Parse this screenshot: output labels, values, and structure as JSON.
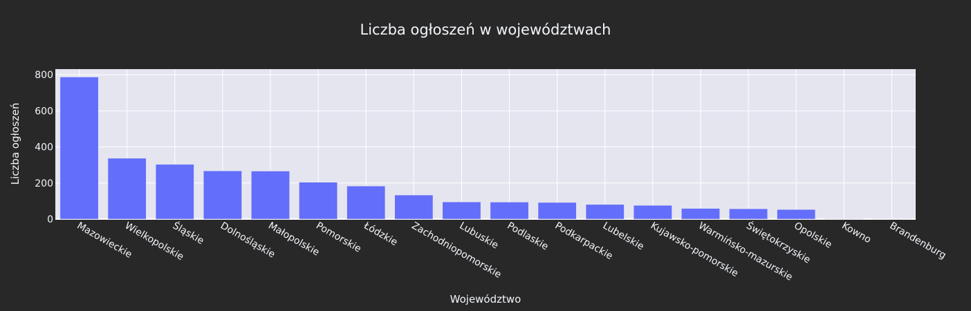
{
  "chart_data": {
    "type": "bar",
    "title": "Liczba ogłoszeń w województwach",
    "xlabel": "Województwo",
    "ylabel": "Liczba ogłoszeń",
    "categories": [
      "Mazowieckie",
      "Wielkopolskie",
      "Śląskie",
      "Dolnośląskie",
      "Małopolskie",
      "Pomorskie",
      "Łódzkie",
      "Zachodniopomorskie",
      "Lubuskie",
      "Podlaskie",
      "Podkarpackie",
      "Lubelskie",
      "Kujawsko-pomorskie",
      "Warmińsko-mazurskie",
      "Świętokrzyskie",
      "Opolskie",
      "Kowno",
      "Brandenburg"
    ],
    "values": [
      787,
      337,
      303,
      267,
      266,
      204,
      183,
      133,
      95,
      94,
      92,
      81,
      76,
      59,
      57,
      53,
      2,
      1
    ],
    "ylim": [
      0,
      831
    ],
    "yticks": [
      0,
      200,
      400,
      600,
      800
    ],
    "grid": true,
    "legend": "none",
    "colors": {
      "background": "#282828",
      "plot_background": "#e5e5f0",
      "bar": "#636efa",
      "grid": "#ffffff",
      "text": "#f2f5fa"
    }
  }
}
